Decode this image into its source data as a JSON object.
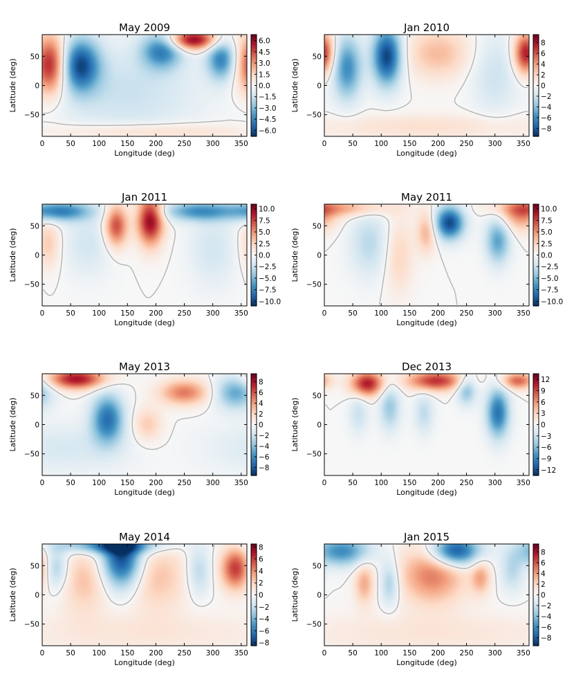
{
  "chart_data": [
    {
      "type": "heatmap",
      "title": "May 2009",
      "xlabel": "Longitude (deg)",
      "ylabel": "Latitude (deg)",
      "xlim": [
        0,
        360
      ],
      "ylim": [
        -87,
        87
      ],
      "xticks": [
        "0",
        "50",
        "100",
        "150",
        "200",
        "250",
        "300",
        "350"
      ],
      "yticks": [
        "50",
        "0",
        "−50"
      ],
      "colorbar_range": [
        -6.8,
        6.8
      ],
      "colorbar_ticks": [
        "6.0",
        "4.5",
        "3.0",
        "1.5",
        "0.0",
        "−1.5",
        "−3.0",
        "−4.5",
        "−6.0"
      ],
      "features": [
        {
          "lon": 15,
          "lat": 35,
          "value": 6.0,
          "slon": 22,
          "slat": 35
        },
        {
          "lon": 265,
          "lat": 78,
          "value": 6.3,
          "slon": 30,
          "slat": 12
        },
        {
          "lon": 65,
          "lat": 35,
          "value": -6.0,
          "slon": 25,
          "slat": 32
        },
        {
          "lon": 210,
          "lat": 60,
          "value": -4.5,
          "slon": 25,
          "slat": 22
        },
        {
          "lon": 315,
          "lat": 45,
          "value": -4.5,
          "slon": 18,
          "slat": 25
        },
        {
          "lon": 150,
          "lat": -10,
          "value": -1.5,
          "slon": 90,
          "slat": 55
        },
        {
          "lon": 180,
          "lat": -78,
          "value": 1.5,
          "slon": 120,
          "slat": 10
        }
      ]
    },
    {
      "type": "heatmap",
      "title": "Jan 2010",
      "xlabel": "Longitude (deg)",
      "ylabel": "Latitude (deg)",
      "xlim": [
        0,
        360
      ],
      "ylim": [
        -87,
        87
      ],
      "xticks": [
        "0",
        "50",
        "100",
        "150",
        "200",
        "250",
        "300",
        "350"
      ],
      "yticks": [
        "50",
        "0",
        "−50"
      ],
      "colorbar_range": [
        -9.5,
        9.5
      ],
      "colorbar_ticks": [
        "8",
        "6",
        "4",
        "2",
        "0",
        "−2",
        "−4",
        "−6",
        "−8"
      ],
      "features": [
        {
          "lon": 110,
          "lat": 50,
          "value": -9.0,
          "slon": 18,
          "slat": 35
        },
        {
          "lon": 40,
          "lat": 30,
          "value": -6.0,
          "slon": 18,
          "slat": 38
        },
        {
          "lon": 355,
          "lat": 55,
          "value": 8.0,
          "slon": 15,
          "slat": 25
        },
        {
          "lon": 200,
          "lat": 55,
          "value": 3.0,
          "slon": 40,
          "slat": 30
        },
        {
          "lon": 300,
          "lat": 20,
          "value": -2.0,
          "slon": 30,
          "slat": 50
        },
        {
          "lon": 180,
          "lat": -70,
          "value": 1.5,
          "slon": 160,
          "slat": 15
        }
      ]
    },
    {
      "type": "heatmap",
      "title": "Jan 2011",
      "xlabel": "Longitude (deg)",
      "ylabel": "Latitude (deg)",
      "xlim": [
        0,
        360
      ],
      "ylim": [
        -87,
        87
      ],
      "xticks": [
        "0",
        "50",
        "100",
        "150",
        "200",
        "250",
        "300",
        "350"
      ],
      "yticks": [
        "50",
        "0",
        "−50"
      ],
      "colorbar_range": [
        -11,
        11
      ],
      "colorbar_ticks": [
        "10.0",
        "7.5",
        "5.0",
        "2.5",
        "0.0",
        "−2.5",
        "−5.0",
        "−7.5",
        "−10.0"
      ],
      "features": [
        {
          "lon": 190,
          "lat": 60,
          "value": 10.0,
          "slon": 16,
          "slat": 30
        },
        {
          "lon": 130,
          "lat": 50,
          "value": 7.5,
          "slon": 14,
          "slat": 25
        },
        {
          "lon": 30,
          "lat": 75,
          "value": -7.5,
          "slon": 40,
          "slat": 12
        },
        {
          "lon": 275,
          "lat": 75,
          "value": -6.5,
          "slon": 45,
          "slat": 12
        },
        {
          "lon": 80,
          "lat": 20,
          "value": -2.0,
          "slon": 30,
          "slat": 40
        },
        {
          "lon": 300,
          "lat": 10,
          "value": -2.0,
          "slon": 30,
          "slat": 45
        },
        {
          "lon": 10,
          "lat": 20,
          "value": 3.0,
          "slon": 15,
          "slat": 30
        }
      ]
    },
    {
      "type": "heatmap",
      "title": "May 2011",
      "xlabel": "Longitude (deg)",
      "ylabel": "Latitude (deg)",
      "xlim": [
        0,
        360
      ],
      "ylim": [
        -87,
        87
      ],
      "xticks": [
        "0",
        "50",
        "100",
        "150",
        "200",
        "250",
        "300",
        "350"
      ],
      "yticks": [
        "50",
        "0",
        "−50"
      ],
      "colorbar_range": [
        -11,
        11
      ],
      "colorbar_ticks": [
        "10.0",
        "7.5",
        "5.0",
        "2.5",
        "0.0",
        "−2.5",
        "−5.0",
        "−7.5",
        "−10.0"
      ],
      "features": [
        {
          "lon": 220,
          "lat": 55,
          "value": -10.0,
          "slon": 18,
          "slat": 20
        },
        {
          "lon": 305,
          "lat": 25,
          "value": -6.0,
          "slon": 15,
          "slat": 28
        },
        {
          "lon": 80,
          "lat": 20,
          "value": -3.0,
          "slon": 25,
          "slat": 40
        },
        {
          "lon": 30,
          "lat": 80,
          "value": 4.0,
          "slon": 60,
          "slat": 10
        },
        {
          "lon": 345,
          "lat": 70,
          "value": 5.0,
          "slon": 25,
          "slat": 20
        },
        {
          "lon": 180,
          "lat": 40,
          "value": 4.0,
          "slon": 12,
          "slat": 25
        },
        {
          "lon": 130,
          "lat": 0,
          "value": 2.5,
          "slon": 18,
          "slat": 45
        }
      ]
    },
    {
      "type": "heatmap",
      "title": "May 2013",
      "xlabel": "Longitude (deg)",
      "ylabel": "Latitude (deg)",
      "xlim": [
        0,
        360
      ],
      "ylim": [
        -87,
        87
      ],
      "xticks": [
        "0",
        "50",
        "100",
        "150",
        "200",
        "250",
        "300",
        "350"
      ],
      "yticks": [
        "50",
        "0",
        "−50"
      ],
      "colorbar_range": [
        -9.5,
        9.5
      ],
      "colorbar_ticks": [
        "8",
        "6",
        "4",
        "2",
        "0",
        "−2",
        "−4",
        "−6",
        "−8"
      ],
      "features": [
        {
          "lon": 60,
          "lat": 78,
          "value": 8.0,
          "slon": 35,
          "slat": 12
        },
        {
          "lon": 250,
          "lat": 55,
          "value": 5.0,
          "slon": 30,
          "slat": 15
        },
        {
          "lon": 115,
          "lat": 10,
          "value": -7.0,
          "slon": 20,
          "slat": 30
        },
        {
          "lon": 340,
          "lat": 55,
          "value": -5.0,
          "slon": 25,
          "slat": 20
        },
        {
          "lon": 185,
          "lat": 0,
          "value": 2.5,
          "slon": 18,
          "slat": 20
        },
        {
          "lon": 40,
          "lat": -40,
          "value": -1.5,
          "slon": 80,
          "slat": 30
        }
      ]
    },
    {
      "type": "heatmap",
      "title": "Dec 2013",
      "xlabel": "Longitude (deg)",
      "ylabel": "Latitude (deg)",
      "xlim": [
        0,
        360
      ],
      "ylim": [
        -87,
        87
      ],
      "xticks": [
        "0",
        "50",
        "100",
        "150",
        "200",
        "250",
        "300",
        "350"
      ],
      "yticks": [
        "50",
        "0",
        "−50"
      ],
      "colorbar_range": [
        -13.5,
        13.5
      ],
      "colorbar_ticks": [
        "12",
        "9",
        "6",
        "3",
        "0",
        "−3",
        "−6",
        "−9",
        "−12"
      ],
      "features": [
        {
          "lon": 75,
          "lat": 70,
          "value": 11.0,
          "slon": 20,
          "slat": 15
        },
        {
          "lon": 195,
          "lat": 75,
          "value": 10.0,
          "slon": 35,
          "slat": 12
        },
        {
          "lon": 340,
          "lat": 75,
          "value": 8.0,
          "slon": 20,
          "slat": 10
        },
        {
          "lon": 305,
          "lat": 20,
          "value": -10.0,
          "slon": 14,
          "slat": 30
        },
        {
          "lon": 250,
          "lat": 60,
          "value": -6.0,
          "slon": 12,
          "slat": 18
        },
        {
          "lon": 115,
          "lat": 30,
          "value": -5.0,
          "slon": 13,
          "slat": 28
        },
        {
          "lon": 175,
          "lat": 20,
          "value": -3.5,
          "slon": 12,
          "slat": 25
        },
        {
          "lon": 60,
          "lat": 20,
          "value": -3.0,
          "slon": 12,
          "slat": 25
        }
      ]
    },
    {
      "type": "heatmap",
      "title": "May 2014",
      "xlabel": "Longitude (deg)",
      "ylabel": "Latitude (deg)",
      "xlim": [
        0,
        360
      ],
      "ylim": [
        -87,
        87
      ],
      "xticks": [
        "0",
        "50",
        "100",
        "150",
        "200",
        "250",
        "300",
        "350"
      ],
      "yticks": [
        "50",
        "0",
        "−50"
      ],
      "colorbar_range": [
        -8.5,
        8.5
      ],
      "colorbar_ticks": [
        "8",
        "6",
        "4",
        "2",
        "0",
        "−2",
        "−4",
        "−6",
        "−8"
      ],
      "features": [
        {
          "lon": 140,
          "lat": 60,
          "value": -8.0,
          "slon": 25,
          "slat": 35
        },
        {
          "lon": 120,
          "lat": 85,
          "value": -6.0,
          "slon": 60,
          "slat": 10
        },
        {
          "lon": 340,
          "lat": 45,
          "value": 6.0,
          "slon": 18,
          "slat": 25
        },
        {
          "lon": 25,
          "lat": 45,
          "value": -3.0,
          "slon": 15,
          "slat": 25
        },
        {
          "lon": 275,
          "lat": 40,
          "value": -2.5,
          "slon": 15,
          "slat": 30
        },
        {
          "lon": 200,
          "lat": 30,
          "value": 2.5,
          "slon": 40,
          "slat": 40
        },
        {
          "lon": 75,
          "lat": 25,
          "value": 2.5,
          "slon": 30,
          "slat": 40
        },
        {
          "lon": 180,
          "lat": -65,
          "value": 1.0,
          "slon": 180,
          "slat": 25
        }
      ]
    },
    {
      "type": "heatmap",
      "title": "Jan 2015",
      "xlabel": "Longitude (deg)",
      "ylabel": "Latitude (deg)",
      "xlim": [
        0,
        360
      ],
      "ylim": [
        -87,
        87
      ],
      "xticks": [
        "0",
        "50",
        "100",
        "150",
        "200",
        "250",
        "300",
        "350"
      ],
      "yticks": [
        "50",
        "0",
        "−50"
      ],
      "colorbar_range": [
        -9.5,
        9.5
      ],
      "colorbar_ticks": [
        "8",
        "6",
        "4",
        "2",
        "0",
        "−2",
        "−4",
        "−6",
        "−8"
      ],
      "features": [
        {
          "lon": 230,
          "lat": 75,
          "value": -9.0,
          "slon": 30,
          "slat": 18
        },
        {
          "lon": 30,
          "lat": 75,
          "value": -6.0,
          "slon": 35,
          "slat": 18
        },
        {
          "lon": 190,
          "lat": 35,
          "value": 5.0,
          "slon": 40,
          "slat": 35
        },
        {
          "lon": 70,
          "lat": 20,
          "value": 3.5,
          "slon": 12,
          "slat": 25
        },
        {
          "lon": 275,
          "lat": 30,
          "value": 3.5,
          "slon": 12,
          "slat": 20
        },
        {
          "lon": 115,
          "lat": 20,
          "value": -3.5,
          "slon": 12,
          "slat": 28
        },
        {
          "lon": 330,
          "lat": 40,
          "value": -2.5,
          "slon": 15,
          "slat": 25
        },
        {
          "lon": 180,
          "lat": -65,
          "value": 1.2,
          "slon": 180,
          "slat": 25
        }
      ]
    }
  ]
}
